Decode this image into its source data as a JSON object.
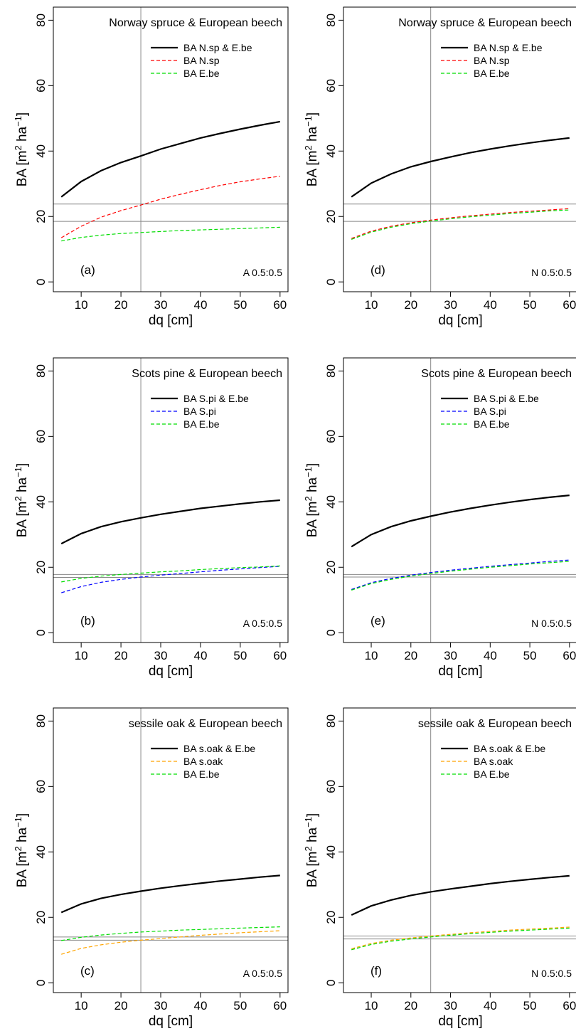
{
  "colors": {
    "combined": "#000000",
    "spruce": "#ff0000",
    "pine": "#0000ff",
    "oak": "#ffa500",
    "beech": "#00dd00",
    "reference": "#888888",
    "axis": "#000000"
  },
  "chart_data": [
    {
      "type": "line",
      "panel": "(a)",
      "note": "A 0.5:0.5",
      "title": "Norway spruce & European beech",
      "xlabel": "dq [cm]",
      "ylabel_main": "BA [m",
      "ylabel_sup1": "2",
      "ylabel_mid": " ha",
      "ylabel_sup2": "−1",
      "ylabel_end": "]",
      "xlim": [
        3,
        62
      ],
      "ylim": [
        -3,
        84
      ],
      "xticks": [
        10,
        20,
        30,
        40,
        50,
        60
      ],
      "yticks": [
        0,
        20,
        40,
        60,
        80
      ],
      "vline": 25,
      "hlines": [
        23.8,
        18.5
      ],
      "x": [
        5,
        10,
        15,
        20,
        25,
        30,
        35,
        40,
        45,
        50,
        55,
        60
      ],
      "series": [
        {
          "name": "BA N.sp & E.be",
          "style": "solid",
          "color": "combined",
          "values": [
            26,
            30.7,
            34,
            36.5,
            38.5,
            40.6,
            42.3,
            44,
            45.4,
            46.7,
            47.9,
            49
          ]
        },
        {
          "name": "BA N.sp",
          "style": "dashed",
          "color": "spruce",
          "values": [
            13.5,
            17,
            19.8,
            21.8,
            23.5,
            25.3,
            26.8,
            28.2,
            29.5,
            30.6,
            31.5,
            32.3
          ]
        },
        {
          "name": "BA E.be",
          "style": "dashed",
          "color": "beech",
          "values": [
            12.5,
            13.6,
            14.3,
            14.8,
            15.1,
            15.4,
            15.7,
            15.9,
            16.1,
            16.3,
            16.5,
            16.7
          ]
        }
      ]
    },
    {
      "type": "line",
      "panel": "(d)",
      "note": "N 0.5:0.5",
      "title": "Norway spruce & European beech",
      "xlabel": "dq [cm]",
      "ylabel_main": "BA [m",
      "ylabel_sup1": "2",
      "ylabel_mid": " ha",
      "ylabel_sup2": "−1",
      "ylabel_end": "]",
      "xlim": [
        3,
        62
      ],
      "ylim": [
        -3,
        84
      ],
      "xticks": [
        10,
        20,
        30,
        40,
        50,
        60
      ],
      "yticks": [
        0,
        20,
        40,
        60,
        80
      ],
      "vline": 25,
      "hlines": [
        23.8,
        18.5
      ],
      "x": [
        5,
        10,
        15,
        20,
        25,
        30,
        35,
        40,
        45,
        50,
        55,
        60
      ],
      "series": [
        {
          "name": "BA N.sp & E.be",
          "style": "solid",
          "color": "combined",
          "values": [
            26,
            30.2,
            33,
            35.2,
            36.8,
            38.2,
            39.5,
            40.6,
            41.6,
            42.5,
            43.3,
            44
          ]
        },
        {
          "name": "BA N.sp",
          "style": "dashed",
          "color": "spruce",
          "values": [
            13.3,
            15.5,
            17,
            18.1,
            18.9,
            19.6,
            20.2,
            20.7,
            21.2,
            21.6,
            22,
            22.4
          ]
        },
        {
          "name": "BA E.be",
          "style": "dashed",
          "color": "beech",
          "values": [
            13,
            15.2,
            16.7,
            17.8,
            18.6,
            19.3,
            19.9,
            20.4,
            20.9,
            21.3,
            21.7,
            22
          ]
        }
      ]
    },
    {
      "type": "line",
      "panel": "(b)",
      "note": "A 0.5:0.5",
      "title": "Scots pine & European beech",
      "xlabel": "dq [cm]",
      "ylabel_main": "BA [m",
      "ylabel_sup1": "2",
      "ylabel_mid": " ha",
      "ylabel_sup2": "−1",
      "ylabel_end": "]",
      "xlim": [
        3,
        62
      ],
      "ylim": [
        -3,
        84
      ],
      "xticks": [
        10,
        20,
        30,
        40,
        50,
        60
      ],
      "yticks": [
        0,
        20,
        40,
        60,
        80
      ],
      "vline": 25,
      "hlines": [
        17.8,
        16.9
      ],
      "x": [
        5,
        10,
        15,
        20,
        25,
        30,
        35,
        40,
        45,
        50,
        55,
        60
      ],
      "series": [
        {
          "name": "BA S.pi & E.be",
          "style": "solid",
          "color": "combined",
          "values": [
            27.2,
            30.3,
            32.4,
            33.9,
            35.1,
            36.2,
            37.1,
            38,
            38.7,
            39.4,
            40,
            40.5
          ]
        },
        {
          "name": "BA S.pi",
          "style": "dashed",
          "color": "pine",
          "values": [
            12.2,
            14.1,
            15.4,
            16.3,
            17,
            17.6,
            18.1,
            18.6,
            19.1,
            19.5,
            19.9,
            20.3
          ]
        },
        {
          "name": "BA E.be",
          "style": "dashed",
          "color": "beech",
          "values": [
            15.5,
            16.6,
            17.3,
            17.8,
            18.2,
            18.6,
            18.9,
            19.3,
            19.6,
            19.9,
            20.1,
            20.4
          ]
        }
      ]
    },
    {
      "type": "line",
      "panel": "(e)",
      "note": "N 0.5:0.5",
      "title": "Scots pine & European beech",
      "xlabel": "dq [cm]",
      "ylabel_main": "BA [m",
      "ylabel_sup1": "2",
      "ylabel_mid": " ha",
      "ylabel_sup2": "−1",
      "ylabel_end": "]",
      "xlim": [
        3,
        62
      ],
      "ylim": [
        -3,
        84
      ],
      "xticks": [
        10,
        20,
        30,
        40,
        50,
        60
      ],
      "yticks": [
        0,
        20,
        40,
        60,
        80
      ],
      "vline": 25,
      "hlines": [
        17.8,
        17.0
      ],
      "x": [
        5,
        10,
        15,
        20,
        25,
        30,
        35,
        40,
        45,
        50,
        55,
        60
      ],
      "series": [
        {
          "name": "BA S.pi & E.be",
          "style": "solid",
          "color": "combined",
          "values": [
            26.3,
            30,
            32.4,
            34.2,
            35.6,
            36.9,
            38,
            39,
            39.9,
            40.7,
            41.4,
            42
          ]
        },
        {
          "name": "BA S.pi",
          "style": "dashed",
          "color": "pine",
          "values": [
            13.2,
            15.3,
            16.6,
            17.6,
            18.4,
            19.1,
            19.7,
            20.3,
            20.8,
            21.3,
            21.8,
            22.2
          ]
        },
        {
          "name": "BA E.be",
          "style": "dashed",
          "color": "beech",
          "values": [
            13,
            15,
            16.3,
            17.3,
            18.1,
            18.8,
            19.4,
            20,
            20.5,
            21,
            21.4,
            21.8
          ]
        }
      ]
    },
    {
      "type": "line",
      "panel": "(c)",
      "note": "A 0.5:0.5",
      "title": "sessile oak & European beech",
      "xlabel": "dq [cm]",
      "ylabel_main": "BA [m",
      "ylabel_sup1": "2",
      "ylabel_mid": " ha",
      "ylabel_sup2": "−1",
      "ylabel_end": "]",
      "xlim": [
        3,
        62
      ],
      "ylim": [
        -3,
        84
      ],
      "xticks": [
        10,
        20,
        30,
        40,
        50,
        60
      ],
      "yticks": [
        0,
        20,
        40,
        60,
        80
      ],
      "vline": 25,
      "hlines": [
        14.0,
        13.0
      ],
      "x": [
        5,
        10,
        15,
        20,
        25,
        30,
        35,
        40,
        45,
        50,
        55,
        60
      ],
      "series": [
        {
          "name": "BA s.oak & E.be",
          "style": "solid",
          "color": "combined",
          "values": [
            21.5,
            24.1,
            25.8,
            27,
            28,
            28.9,
            29.7,
            30.4,
            31.1,
            31.7,
            32.3,
            32.8
          ]
        },
        {
          "name": "BA s.oak",
          "style": "dashed",
          "color": "oak",
          "values": [
            8.7,
            10.5,
            11.6,
            12.4,
            13,
            13.5,
            14,
            14.5,
            14.9,
            15.3,
            15.6,
            15.9
          ]
        },
        {
          "name": "BA E.be",
          "style": "dashed",
          "color": "beech",
          "values": [
            12.9,
            13.9,
            14.6,
            15.1,
            15.5,
            15.8,
            16.1,
            16.3,
            16.5,
            16.7,
            16.9,
            17.1
          ]
        }
      ]
    },
    {
      "type": "line",
      "panel": "(f)",
      "note": "N 0.5:0.5",
      "title": "sessile oak & European beech",
      "xlabel": "dq [cm]",
      "ylabel_main": "BA [m",
      "ylabel_sup1": "2",
      "ylabel_mid": " ha",
      "ylabel_sup2": "−1",
      "ylabel_end": "]",
      "xlim": [
        3,
        62
      ],
      "ylim": [
        -3,
        84
      ],
      "xticks": [
        10,
        20,
        30,
        40,
        50,
        60
      ],
      "yticks": [
        0,
        20,
        40,
        60,
        80
      ],
      "vline": 25,
      "hlines": [
        14.3,
        13.4
      ],
      "x": [
        5,
        10,
        15,
        20,
        25,
        30,
        35,
        40,
        45,
        50,
        55,
        60
      ],
      "series": [
        {
          "name": "BA s.oak & E.be",
          "style": "solid",
          "color": "combined",
          "values": [
            20.7,
            23.5,
            25.3,
            26.7,
            27.8,
            28.7,
            29.5,
            30.3,
            31,
            31.6,
            32.2,
            32.7
          ]
        },
        {
          "name": "BA s.oak",
          "style": "dashed",
          "color": "oak",
          "values": [
            10.4,
            12,
            13,
            13.7,
            14.3,
            14.8,
            15.3,
            15.7,
            16.1,
            16.4,
            16.7,
            17
          ]
        },
        {
          "name": "BA E.be",
          "style": "dashed",
          "color": "beech",
          "values": [
            10.1,
            11.7,
            12.7,
            13.4,
            14,
            14.5,
            15,
            15.4,
            15.8,
            16.1,
            16.4,
            16.7
          ]
        }
      ]
    }
  ]
}
